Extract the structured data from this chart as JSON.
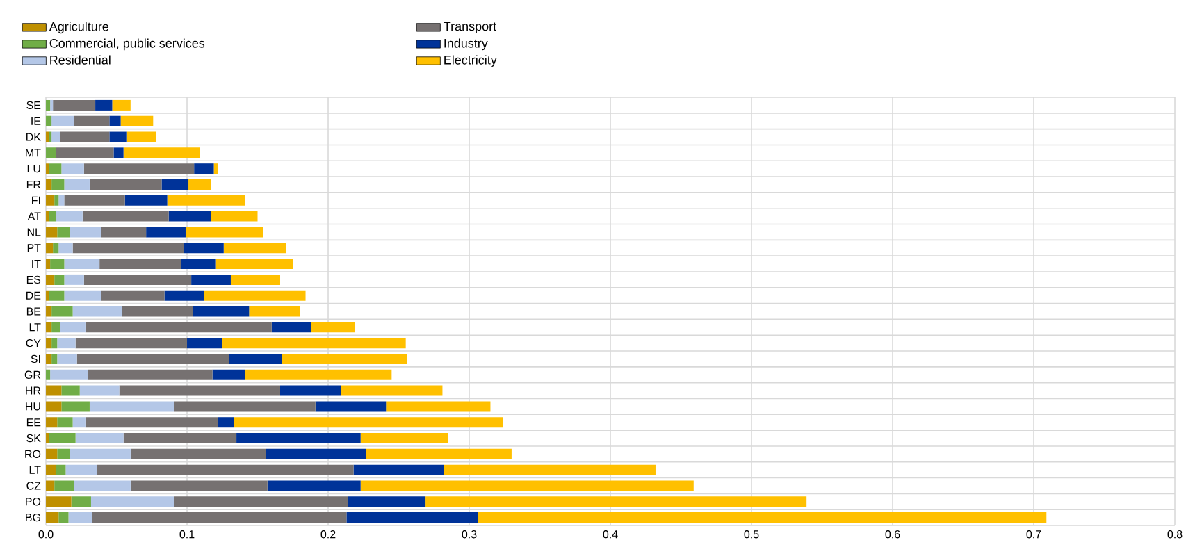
{
  "chart_data": {
    "type": "bar",
    "orientation": "horizontal",
    "stacked": true,
    "grid": true,
    "legend": "top left",
    "categories": [
      "SE",
      "IE",
      "DK",
      "MT",
      "LU",
      "FR",
      "FI",
      "AT",
      "NL",
      "PT",
      "IT",
      "ES",
      "DE",
      "BE",
      "LT",
      "CY",
      "SI",
      "GR",
      "HR",
      "HU",
      "EE",
      "SK",
      "RO",
      "LT",
      "CZ",
      "PO",
      "BG"
    ],
    "series": [
      {
        "name": "Agriculture",
        "color": "#bf9000",
        "values": [
          0,
          0,
          0.002,
          0,
          0.002,
          0.004,
          0.006,
          0.002,
          0.008,
          0.005,
          0.003,
          0.006,
          0.002,
          0.004,
          0.004,
          0.004,
          0.004,
          0,
          0.011,
          0.011,
          0.008,
          0.002,
          0.008,
          0.007,
          0.006,
          0.018,
          0.009
        ]
      },
      {
        "name": "Commercial, public services",
        "color": "#70ad47",
        "values": [
          0.003,
          0.004,
          0.002,
          0.007,
          0.009,
          0.009,
          0.003,
          0.005,
          0.009,
          0.004,
          0.01,
          0.007,
          0.011,
          0.015,
          0.006,
          0.004,
          0.004,
          0.003,
          0.013,
          0.02,
          0.011,
          0.019,
          0.009,
          0.007,
          0.014,
          0.014,
          0.007
        ]
      },
      {
        "name": "Residential",
        "color": "#b4c7e7",
        "values": [
          0.002,
          0.016,
          0.006,
          0,
          0.016,
          0.018,
          0.004,
          0.019,
          0.022,
          0.01,
          0.025,
          0.014,
          0.026,
          0.035,
          0.018,
          0.013,
          0.014,
          0.027,
          0.028,
          0.06,
          0.009,
          0.034,
          0.043,
          0.022,
          0.04,
          0.059,
          0.017
        ]
      },
      {
        "name": "Transport",
        "color": "#767171",
        "values": [
          0.03,
          0.025,
          0.035,
          0.041,
          0.078,
          0.051,
          0.043,
          0.061,
          0.032,
          0.079,
          0.058,
          0.076,
          0.045,
          0.05,
          0.132,
          0.079,
          0.108,
          0.088,
          0.114,
          0.1,
          0.094,
          0.08,
          0.096,
          0.182,
          0.097,
          0.123,
          0.18
        ]
      },
      {
        "name": "Industry",
        "color": "#003399",
        "values": [
          0.012,
          0.008,
          0.012,
          0.007,
          0.014,
          0.019,
          0.03,
          0.03,
          0.028,
          0.028,
          0.024,
          0.028,
          0.028,
          0.04,
          0.028,
          0.025,
          0.037,
          0.023,
          0.043,
          0.05,
          0.011,
          0.088,
          0.071,
          0.064,
          0.066,
          0.055,
          0.093
        ]
      },
      {
        "name": "Electricity",
        "color": "#ffc000",
        "values": [
          0.013,
          0.023,
          0.021,
          0.054,
          0.003,
          0.016,
          0.055,
          0.033,
          0.055,
          0.044,
          0.055,
          0.035,
          0.072,
          0.036,
          0.031,
          0.13,
          0.089,
          0.104,
          0.072,
          0.074,
          0.191,
          0.062,
          0.103,
          0.15,
          0.236,
          0.27,
          0.403
        ]
      }
    ],
    "xlim": [
      0,
      0.8
    ],
    "xticks": [
      {
        "value": 0,
        "label": "0.0"
      },
      0.1,
      0.2,
      0.3,
      0.4,
      0.5,
      0.6,
      0.7,
      0.8
    ]
  }
}
